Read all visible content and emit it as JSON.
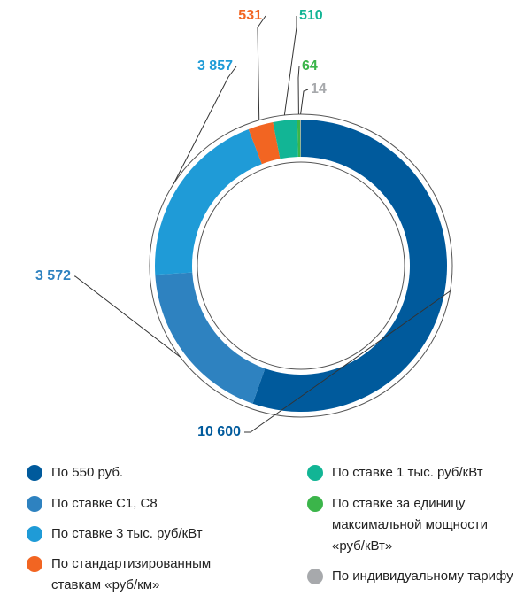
{
  "chart_data": {
    "type": "pie",
    "categories": [
      "По 550 руб.",
      "По ставке С1, С8",
      "По ставке 3 тыс. руб/кВт",
      "По стандартизированным ставкам «руб/км»",
      "По ставке 1 тыс. руб/кВт",
      "По ставке за единицу максимальной мощности «руб/кВт»",
      "По индивидуальному тарифу"
    ],
    "values": [
      10600,
      3572,
      3857,
      531,
      510,
      64,
      14
    ],
    "value_labels": [
      "10 600",
      "3 572",
      "3 857",
      "531",
      "510",
      "64",
      "14"
    ],
    "colors": [
      "#005a9c",
      "#2e82c0",
      "#1f9bd7",
      "#f26522",
      "#12b595",
      "#3bb54a",
      "#a7a9ac"
    ]
  }
}
